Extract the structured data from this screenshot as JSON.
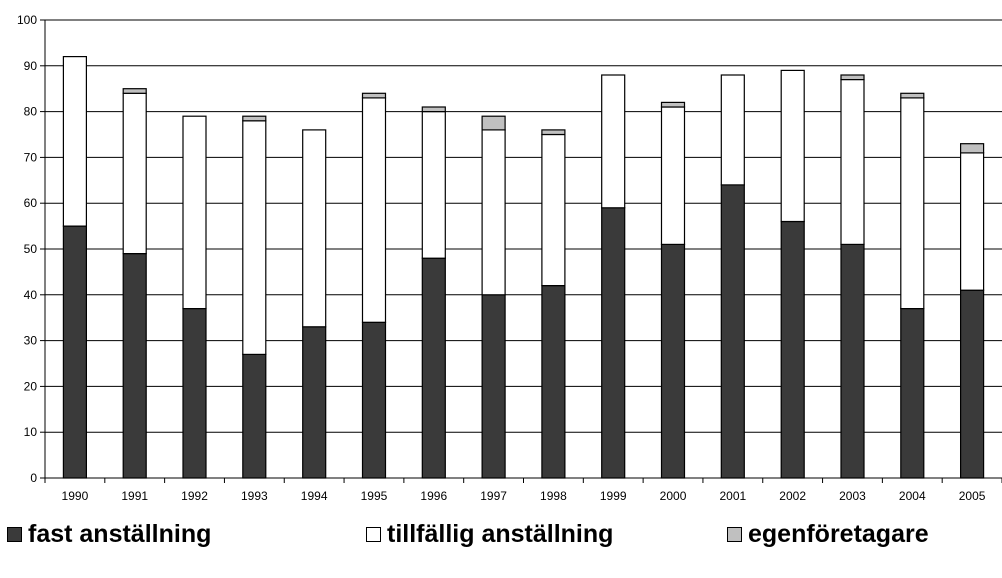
{
  "chart_data": {
    "type": "bar",
    "stacked": true,
    "title": "",
    "xlabel": "",
    "ylabel": "",
    "ylim": [
      0,
      100
    ],
    "yticks": [
      0,
      10,
      20,
      30,
      40,
      50,
      60,
      70,
      80,
      90,
      100
    ],
    "grid": true,
    "legend_position": "bottom",
    "categories": [
      "1990",
      "1991",
      "1992",
      "1993",
      "1994",
      "1995",
      "1996",
      "1997",
      "1998",
      "1999",
      "2000",
      "2001",
      "2002",
      "2003",
      "2004",
      "2005"
    ],
    "series": [
      {
        "name": "fast anställning",
        "color": "#3a3a3a",
        "values": [
          55,
          49,
          37,
          27,
          33,
          34,
          48,
          40,
          42,
          59,
          51,
          64,
          56,
          51,
          37,
          41
        ]
      },
      {
        "name": "tillfällig anställning",
        "color": "#ffffff",
        "values": [
          37,
          35,
          42,
          51,
          43,
          49,
          32,
          36,
          33,
          29,
          30,
          24,
          33,
          36,
          46,
          30
        ]
      },
      {
        "name": "egenföretagare",
        "color": "#c0c0c0",
        "values": [
          0,
          1,
          0,
          1,
          0,
          1,
          1,
          3,
          1,
          0,
          1,
          0,
          0,
          1,
          1,
          2
        ]
      }
    ]
  }
}
